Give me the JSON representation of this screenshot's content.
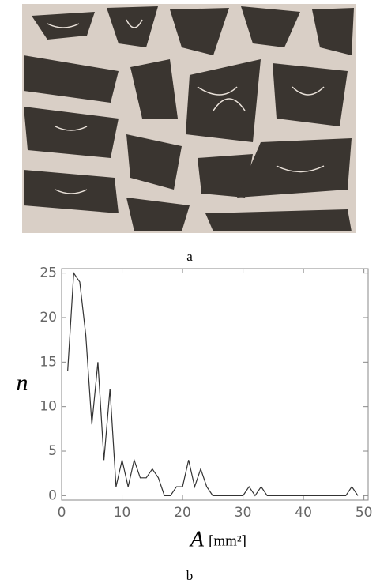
{
  "panels": [
    {
      "label": "a"
    },
    {
      "label": "b"
    }
  ],
  "chart_data": {
    "type": "line",
    "xlabel": "A",
    "xunit": "[mm²]",
    "ylabel": "n",
    "color": "#333333",
    "x": [
      1,
      2,
      3,
      4,
      5,
      6,
      7,
      8,
      9,
      10,
      11,
      12,
      13,
      14,
      15,
      16,
      17,
      18,
      19,
      20,
      21,
      22,
      23,
      24,
      25,
      26,
      27,
      28,
      29,
      30,
      31,
      32,
      33,
      34,
      35,
      36,
      37,
      38,
      39,
      40,
      41,
      42,
      43,
      44,
      45,
      46,
      47,
      48,
      49
    ],
    "values": [
      14,
      25,
      24,
      18,
      8,
      15,
      4,
      12,
      1,
      4,
      1,
      4,
      2,
      2,
      3,
      2,
      0,
      0,
      1,
      1,
      4,
      1,
      3,
      1,
      0,
      0,
      0,
      0,
      0,
      0,
      1,
      0,
      1,
      0,
      0,
      0,
      0,
      0,
      0,
      0,
      0,
      0,
      0,
      0,
      0,
      0,
      0,
      1,
      0
    ],
    "xlim": [
      0,
      50.7
    ],
    "ylim": [
      -0.5,
      25.5
    ],
    "xticks": [
      0,
      10,
      20,
      30,
      40,
      50
    ],
    "yticks": [
      0,
      5,
      10,
      15,
      20,
      25
    ]
  }
}
